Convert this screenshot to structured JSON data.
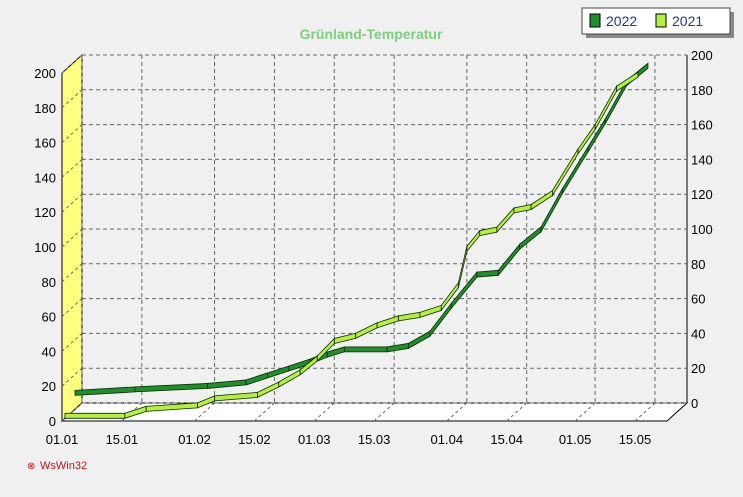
{
  "chart_data": {
    "type": "line",
    "title": "Grünland-Temperatur",
    "legend_position": "top-right",
    "grid": true,
    "x_ticks": [
      "01.01",
      "15.01",
      "01.02",
      "15.02",
      "01.03",
      "15.03",
      "01.04",
      "15.04",
      "01.05",
      "15.05"
    ],
    "y_ticks_left": [
      "0",
      "20",
      "40",
      "60",
      "80",
      "100",
      "120",
      "140",
      "160",
      "180",
      "200"
    ],
    "y_ticks_right": [
      "0",
      "20",
      "40",
      "60",
      "80",
      "100",
      "120",
      "140",
      "160",
      "180",
      "200"
    ],
    "ylim": [
      0,
      200
    ],
    "series": [
      {
        "name": "2022",
        "color": "#1f8f2a",
        "points": [
          [
            "01.01",
            8
          ],
          [
            "15.01",
            10
          ],
          [
            "01.02",
            12
          ],
          [
            "10.02",
            14
          ],
          [
            "15.02",
            18
          ],
          [
            "20.02",
            22
          ],
          [
            "25.02",
            26
          ],
          [
            "01.03",
            30
          ],
          [
            "05.03",
            33
          ],
          [
            "15.03",
            33
          ],
          [
            "20.03",
            35
          ],
          [
            "25.03",
            42
          ],
          [
            "30.03",
            58
          ],
          [
            "05.04",
            76
          ],
          [
            "10.04",
            77
          ],
          [
            "15.04",
            92
          ],
          [
            "20.04",
            102
          ],
          [
            "25.04",
            124
          ],
          [
            "01.05",
            148
          ],
          [
            "05.05",
            164
          ],
          [
            "10.05",
            186
          ],
          [
            "15.05",
            196
          ]
        ]
      },
      {
        "name": "2021",
        "color": "#b4f03c",
        "points": [
          [
            "01.01",
            0
          ],
          [
            "15.01",
            0
          ],
          [
            "20.01",
            4
          ],
          [
            "01.02",
            6
          ],
          [
            "05.02",
            10
          ],
          [
            "15.02",
            12
          ],
          [
            "20.02",
            18
          ],
          [
            "25.02",
            25
          ],
          [
            "01.03",
            33
          ],
          [
            "05.03",
            43
          ],
          [
            "10.03",
            46
          ],
          [
            "15.03",
            52
          ],
          [
            "20.03",
            56
          ],
          [
            "25.03",
            58
          ],
          [
            "30.03",
            62
          ],
          [
            "03.04",
            75
          ],
          [
            "05.04",
            96
          ],
          [
            "08.04",
            105
          ],
          [
            "12.04",
            107
          ],
          [
            "16.04",
            118
          ],
          [
            "20.04",
            120
          ],
          [
            "25.04",
            128
          ],
          [
            "01.05",
            152
          ],
          [
            "05.05",
            166
          ],
          [
            "10.05",
            188
          ],
          [
            "15.05",
            196
          ]
        ]
      }
    ]
  },
  "footer": {
    "brand": "WsWin32"
  }
}
